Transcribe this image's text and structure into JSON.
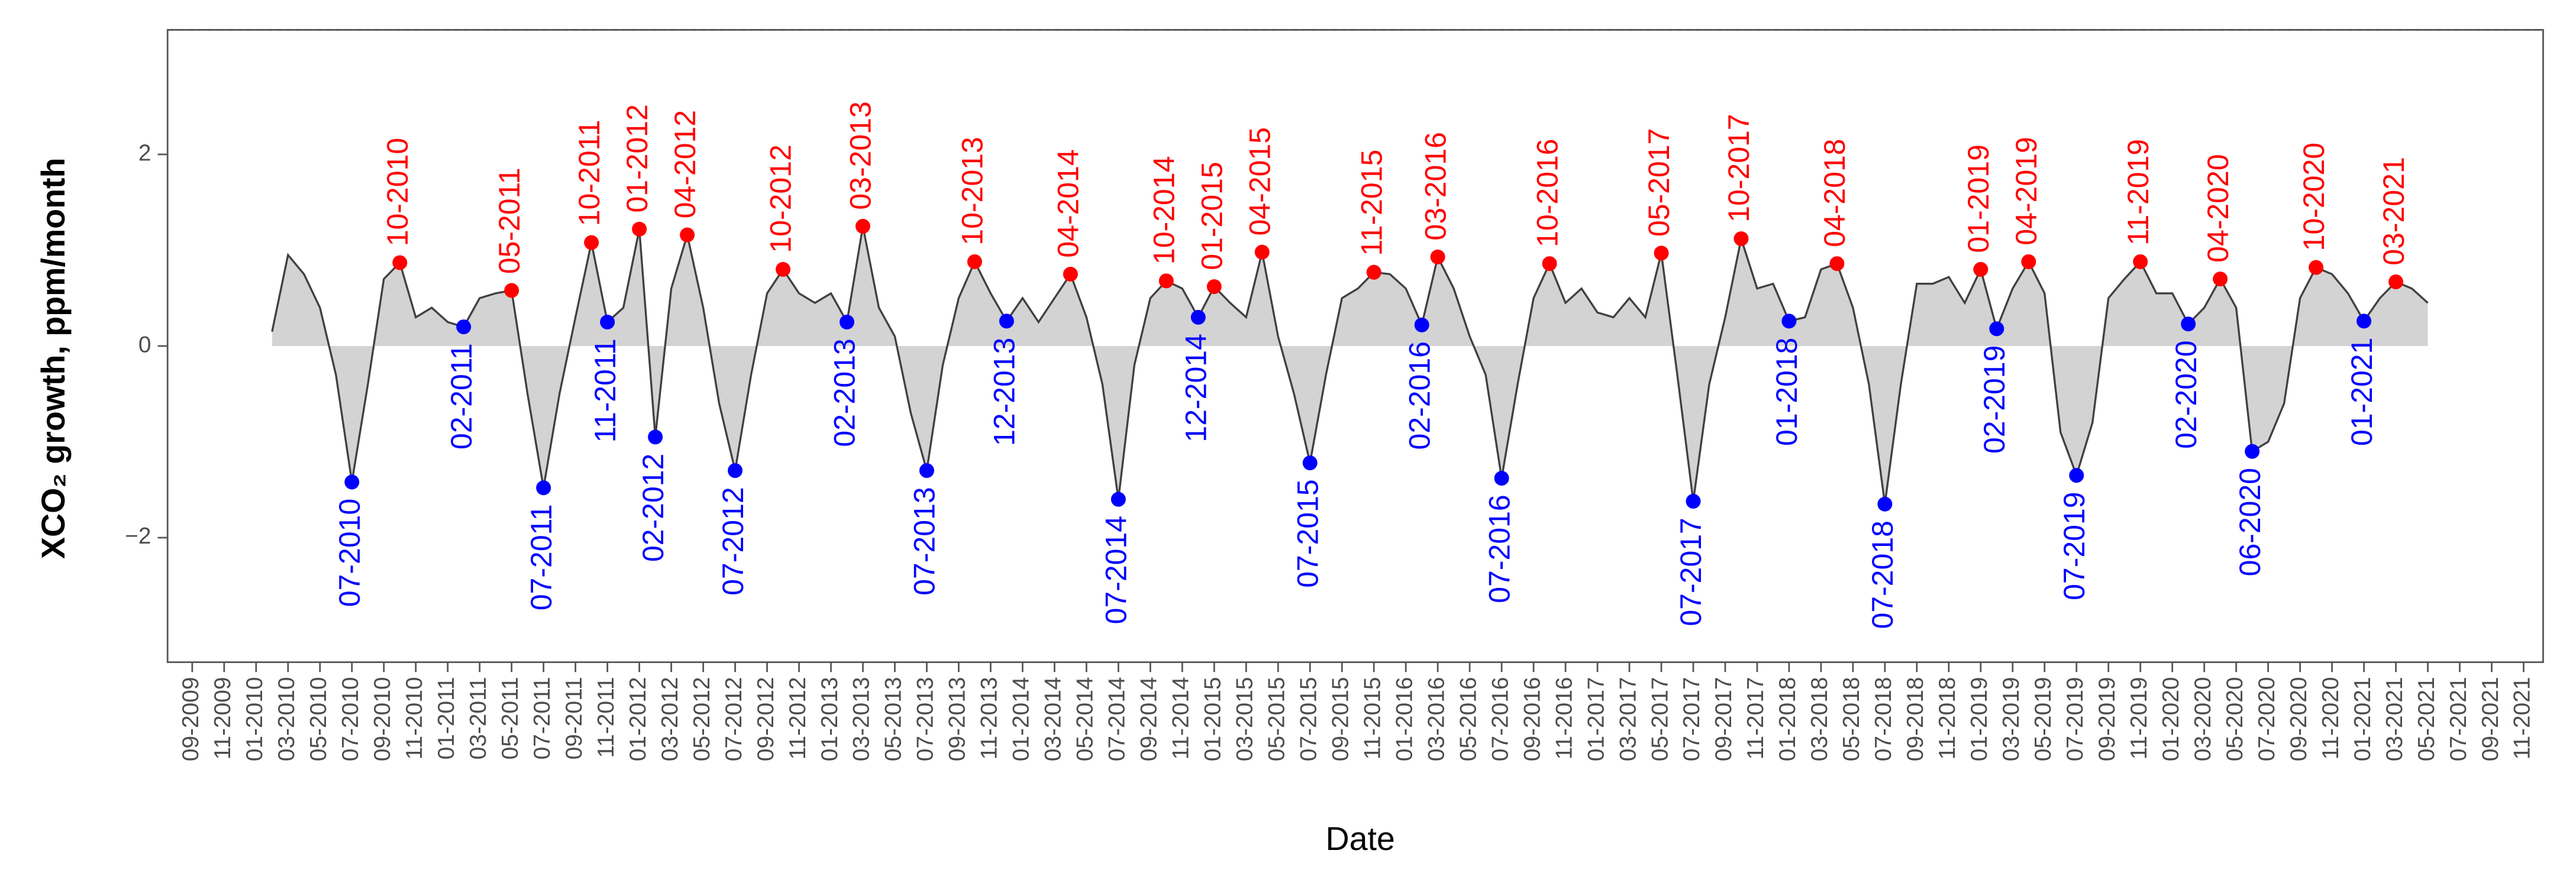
{
  "chart_data": {
    "type": "area",
    "y_label": "XCO₂ growth, ppm/month",
    "x_label": "Date",
    "ylim": [
      -3.3,
      3.3
    ],
    "yticks": [
      {
        "value": -2,
        "label": "−2"
      },
      0,
      2
    ],
    "line_color": "#404040",
    "fill_color": "#d3d3d3",
    "peak_color": "#ff0000",
    "trough_color": "#0000ff",
    "xticks": [
      "09-2009",
      "11-2009",
      "01-2010",
      "03-2010",
      "05-2010",
      "07-2010",
      "09-2010",
      "11-2010",
      "01-2011",
      "03-2011",
      "05-2011",
      "07-2011",
      "09-2011",
      "11-2011",
      "01-2012",
      "03-2012",
      "05-2012",
      "07-2012",
      "09-2012",
      "11-2012",
      "01-2013",
      "03-2013",
      "05-2013",
      "07-2013",
      "09-2013",
      "11-2013",
      "01-2014",
      "03-2014",
      "05-2014",
      "07-2014",
      "09-2014",
      "11-2014",
      "01-2015",
      "03-2015",
      "05-2015",
      "07-2015",
      "09-2015",
      "11-2015",
      "01-2016",
      "03-2016",
      "05-2016",
      "07-2016",
      "09-2016",
      "11-2016",
      "01-2017",
      "03-2017",
      "05-2017",
      "07-2017",
      "09-2017",
      "11-2017",
      "01-2018",
      "03-2018",
      "05-2018",
      "07-2018",
      "09-2018",
      "11-2018",
      "01-2019",
      "03-2019",
      "05-2019",
      "07-2019",
      "09-2019",
      "11-2019",
      "01-2020",
      "03-2020",
      "05-2020",
      "07-2020",
      "09-2020",
      "11-2020",
      "01-2021",
      "03-2021",
      "05-2021",
      "07-2021",
      "09-2021",
      "11-2021"
    ],
    "x": [
      "02-2010",
      "03-2010",
      "04-2010",
      "05-2010",
      "06-2010",
      "07-2010",
      "08-2010",
      "09-2010",
      "10-2010",
      "11-2010",
      "12-2010",
      "01-2011",
      "02-2011",
      "03-2011",
      "04-2011",
      "05-2011",
      "06-2011",
      "07-2011",
      "08-2011",
      "09-2011",
      "10-2011",
      "11-2011",
      "12-2011",
      "01-2012",
      "02-2012",
      "03-2012",
      "04-2012",
      "05-2012",
      "06-2012",
      "07-2012",
      "08-2012",
      "09-2012",
      "10-2012",
      "11-2012",
      "12-2012",
      "01-2013",
      "02-2013",
      "03-2013",
      "04-2013",
      "05-2013",
      "06-2013",
      "07-2013",
      "08-2013",
      "09-2013",
      "10-2013",
      "11-2013",
      "12-2013",
      "01-2014",
      "02-2014",
      "03-2014",
      "04-2014",
      "05-2014",
      "06-2014",
      "07-2014",
      "08-2014",
      "09-2014",
      "10-2014",
      "11-2014",
      "12-2014",
      "01-2015",
      "02-2015",
      "03-2015",
      "04-2015",
      "05-2015",
      "06-2015",
      "07-2015",
      "08-2015",
      "09-2015",
      "10-2015",
      "11-2015",
      "12-2015",
      "01-2016",
      "02-2016",
      "03-2016",
      "04-2016",
      "05-2016",
      "06-2016",
      "07-2016",
      "08-2016",
      "09-2016",
      "10-2016",
      "11-2016",
      "12-2016",
      "01-2017",
      "02-2017",
      "03-2017",
      "04-2017",
      "05-2017",
      "06-2017",
      "07-2017",
      "08-2017",
      "09-2017",
      "10-2017",
      "11-2017",
      "12-2017",
      "01-2018",
      "02-2018",
      "03-2018",
      "04-2018",
      "05-2018",
      "06-2018",
      "07-2018",
      "08-2018",
      "09-2018",
      "10-2018",
      "11-2018",
      "12-2018",
      "01-2019",
      "02-2019",
      "03-2019",
      "04-2019",
      "05-2019",
      "06-2019",
      "07-2019",
      "08-2019",
      "09-2019",
      "10-2019",
      "11-2019",
      "12-2019",
      "01-2020",
      "02-2020",
      "03-2020",
      "04-2020",
      "05-2020",
      "06-2020",
      "07-2020",
      "08-2020",
      "09-2020",
      "10-2020",
      "11-2020",
      "12-2020",
      "01-2021",
      "02-2021",
      "03-2021",
      "04-2021",
      "05-2021"
    ],
    "values": [
      0.15,
      0.95,
      0.75,
      0.4,
      -0.3,
      -1.42,
      -0.4,
      0.7,
      0.87,
      0.3,
      0.4,
      0.25,
      0.2,
      0.5,
      0.55,
      0.58,
      -0.5,
      -1.48,
      -0.5,
      0.3,
      1.08,
      0.25,
      0.4,
      1.22,
      -0.95,
      0.6,
      1.16,
      0.4,
      -0.6,
      -1.3,
      -0.3,
      0.55,
      0.8,
      0.55,
      0.45,
      0.55,
      0.25,
      1.25,
      0.4,
      0.1,
      -0.7,
      -1.3,
      -0.2,
      0.5,
      0.88,
      0.55,
      0.26,
      0.5,
      0.25,
      0.5,
      0.75,
      0.3,
      -0.4,
      -1.6,
      -0.2,
      0.5,
      0.68,
      0.6,
      0.3,
      0.62,
      0.45,
      0.3,
      0.98,
      0.1,
      -0.5,
      -1.22,
      -0.3,
      0.5,
      0.6,
      0.77,
      0.75,
      0.6,
      0.22,
      0.93,
      0.6,
      0.1,
      -0.3,
      -1.38,
      -0.4,
      0.5,
      0.86,
      0.45,
      0.6,
      0.35,
      0.3,
      0.5,
      0.3,
      0.97,
      -0.3,
      -1.62,
      -0.4,
      0.3,
      1.12,
      0.6,
      0.65,
      0.26,
      0.3,
      0.8,
      0.86,
      0.4,
      -0.4,
      -1.65,
      -0.4,
      0.65,
      0.65,
      0.72,
      0.45,
      0.8,
      0.18,
      0.6,
      0.88,
      0.55,
      -0.9,
      -1.35,
      -0.8,
      0.5,
      0.7,
      0.88,
      0.55,
      0.55,
      0.23,
      0.4,
      0.7,
      0.4,
      -1.1,
      -1.0,
      -0.6,
      0.5,
      0.82,
      0.75,
      0.55,
      0.26,
      0.5,
      0.67,
      0.6,
      0.45
    ],
    "peaks": [
      "10-2010",
      "05-2011",
      "10-2011",
      "01-2012",
      "04-2012",
      "10-2012",
      "03-2013",
      "10-2013",
      "04-2014",
      "10-2014",
      "01-2015",
      "04-2015",
      "11-2015",
      "03-2016",
      "10-2016",
      "05-2017",
      "10-2017",
      "04-2018",
      "01-2019",
      "04-2019",
      "11-2019",
      "04-2020",
      "10-2020",
      "03-2021"
    ],
    "troughs": [
      "07-2010",
      "02-2011",
      "07-2011",
      "11-2011",
      "02-2012",
      "07-2012",
      "02-2013",
      "07-2013",
      "12-2013",
      "07-2014",
      "12-2014",
      "07-2015",
      "02-2016",
      "07-2016",
      "07-2017",
      "01-2018",
      "07-2018",
      "02-2019",
      "07-2019",
      "02-2020",
      "06-2020",
      "01-2021"
    ]
  }
}
